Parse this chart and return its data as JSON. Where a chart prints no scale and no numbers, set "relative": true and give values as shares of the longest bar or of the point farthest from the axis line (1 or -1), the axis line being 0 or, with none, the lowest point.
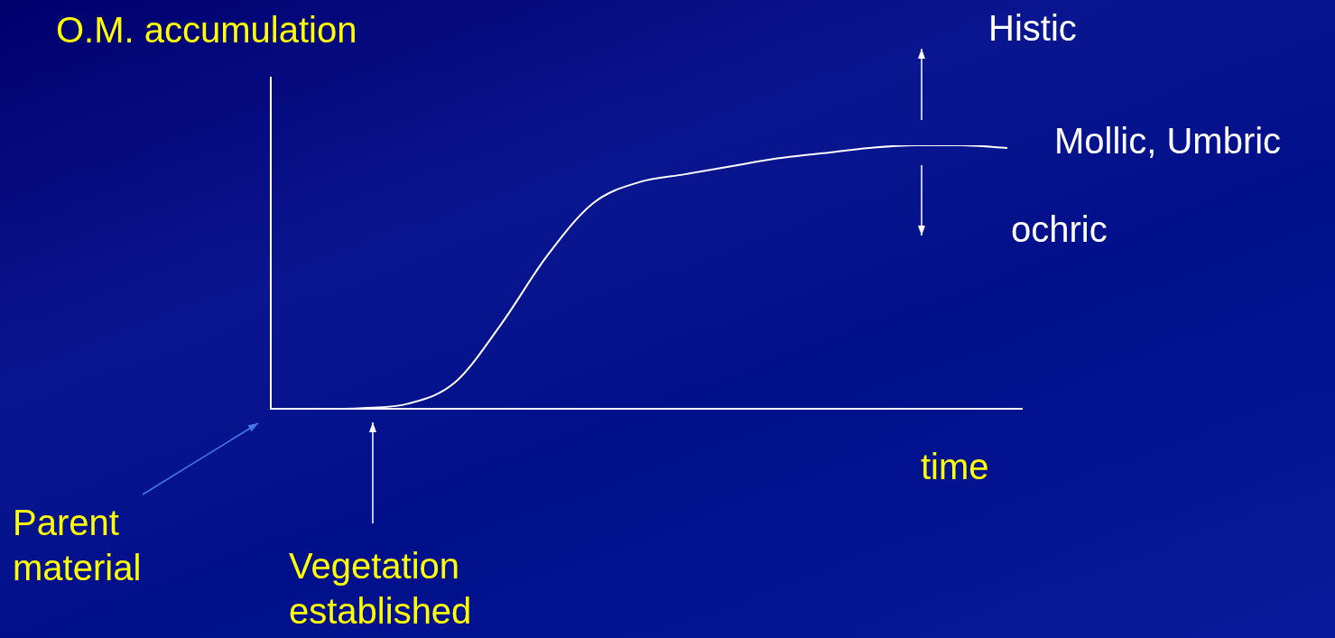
{
  "chart_data": {
    "type": "line",
    "relative": true,
    "ylabel": "O.M. accumulation",
    "xlabel": "time",
    "color": "#ffffff",
    "marker": "none",
    "legend": false,
    "categories": [
      null,
      null,
      null,
      null,
      null,
      null,
      null,
      null,
      null,
      null,
      null,
      null,
      null,
      null,
      null,
      null,
      null
    ],
    "values": [
      0,
      0,
      0.003,
      0.02,
      0.1,
      0.32,
      0.58,
      0.78,
      0.86,
      0.89,
      0.92,
      0.95,
      0.97,
      0.99,
      1,
      1,
      0.99
    ],
    "annotations": [
      "Histic",
      "Mollic, Umbric",
      "ochric",
      "Parent material",
      "Vegetation established"
    ]
  }
}
